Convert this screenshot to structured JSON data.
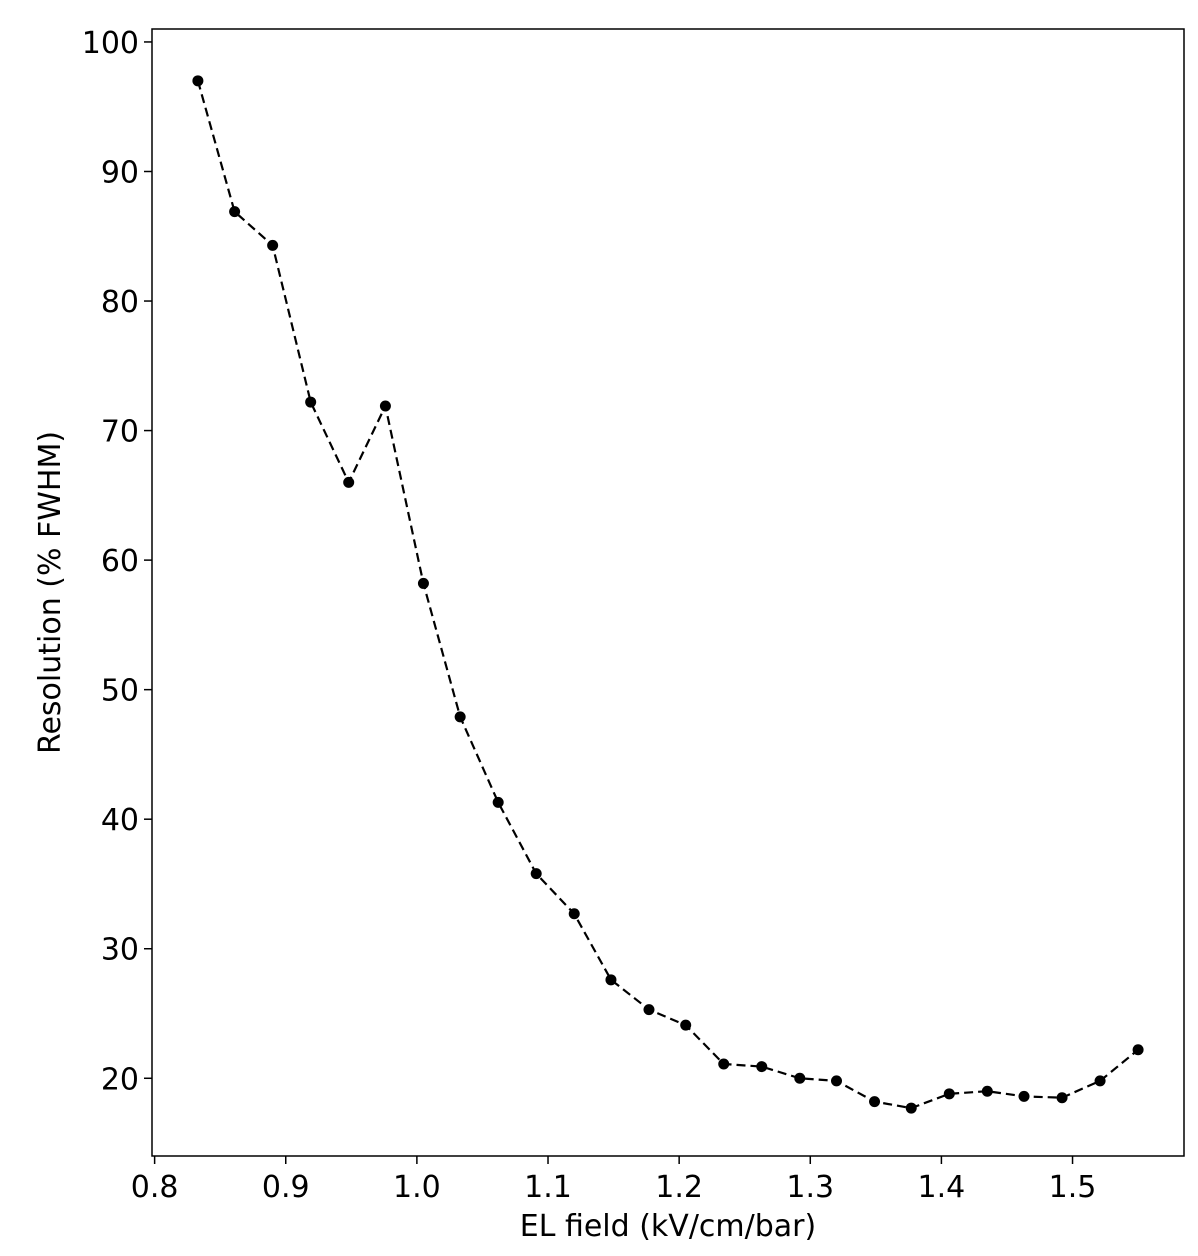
{
  "chart_data": {
    "type": "line",
    "title": "",
    "xlabel": "EL field (kV/cm/bar)",
    "ylabel": "Resolution (% FWHM)",
    "xlim": [
      0.798,
      1.585
    ],
    "ylim": [
      14.0,
      101.0
    ],
    "x_ticks": [
      0.8,
      0.9,
      1.0,
      1.1,
      1.2,
      1.3,
      1.4,
      1.5
    ],
    "x_tick_labels": [
      "0.8",
      "0.9",
      "1.0",
      "1.1",
      "1.2",
      "1.3",
      "1.4",
      "1.5"
    ],
    "y_ticks": [
      20,
      30,
      40,
      50,
      60,
      70,
      80,
      90,
      100
    ],
    "y_tick_labels": [
      "20",
      "30",
      "40",
      "50",
      "60",
      "70",
      "80",
      "90",
      "100"
    ],
    "grid": false,
    "legend": "none",
    "series": [
      {
        "color": "#000000",
        "line_style": "dashed",
        "marker": "circle",
        "x": [
          0.833,
          0.861,
          0.89,
          0.919,
          0.948,
          0.976,
          1.005,
          1.033,
          1.062,
          1.091,
          1.12,
          1.148,
          1.177,
          1.205,
          1.234,
          1.263,
          1.292,
          1.32,
          1.349,
          1.377,
          1.406,
          1.435,
          1.463,
          1.492,
          1.521,
          1.55
        ],
        "y": [
          97.0,
          86.9,
          84.3,
          72.2,
          66.0,
          71.9,
          58.2,
          47.9,
          41.3,
          35.8,
          32.7,
          27.6,
          25.3,
          24.1,
          21.1,
          20.9,
          20.0,
          19.8,
          18.2,
          17.7,
          18.8,
          19.0,
          18.6,
          18.5,
          19.8,
          22.2
        ]
      }
    ]
  }
}
